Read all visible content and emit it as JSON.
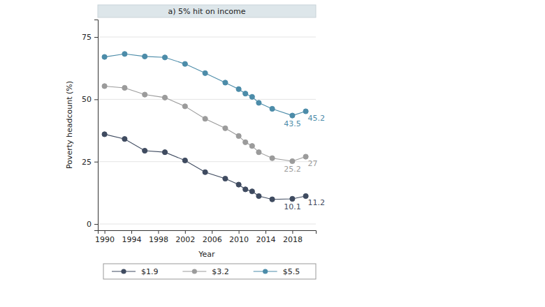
{
  "chart_data": {
    "type": "line",
    "title": "a) 5% hit on income",
    "x_label": "Year",
    "y_label": "Poverty headcount (%)",
    "x": [
      1990,
      1993,
      1996,
      1999,
      2002,
      2005,
      2008,
      2010,
      2011,
      2012,
      2013,
      2015,
      2018,
      2020
    ],
    "xlim": [
      1989,
      2021.5
    ],
    "xticks": [
      1990,
      1994,
      1998,
      2002,
      2006,
      2010,
      2014,
      2018
    ],
    "ylim": [
      -2.5,
      82
    ],
    "yticks": [
      0,
      25,
      50,
      75
    ],
    "grid": true,
    "legend": "bottom",
    "marker": "circle",
    "data_labels": true,
    "series": [
      {
        "name": "$1.9",
        "color": "#3f4b60",
        "values": [
          36,
          34.1,
          29.4,
          28.8,
          25.5,
          20.8,
          18.2,
          15.8,
          13.9,
          13.1,
          11.2,
          9.9,
          10.1,
          11.2
        ],
        "value_labels": [
          null,
          null,
          null,
          null,
          null,
          null,
          null,
          null,
          null,
          null,
          null,
          null,
          "10.1",
          "11.2"
        ]
      },
      {
        "name": "$3.2",
        "color": "#9b9b9b",
        "values": [
          55.3,
          54.6,
          51.9,
          50.7,
          47.2,
          42.2,
          38.4,
          35.3,
          32.8,
          31.3,
          28.8,
          26.4,
          25.2,
          27
        ],
        "value_labels": [
          null,
          null,
          null,
          null,
          null,
          null,
          null,
          null,
          null,
          null,
          null,
          null,
          "25.2",
          "27"
        ]
      },
      {
        "name": "$5.5",
        "color": "#4c8ca9",
        "values": [
          67,
          68.2,
          67.2,
          66.8,
          64.2,
          60.5,
          56.7,
          54.1,
          52.3,
          51,
          48.6,
          46.2,
          43.5,
          45.2
        ],
        "value_labels": [
          null,
          null,
          null,
          null,
          null,
          null,
          null,
          null,
          null,
          null,
          null,
          null,
          "43.5",
          "45.2"
        ]
      }
    ]
  }
}
